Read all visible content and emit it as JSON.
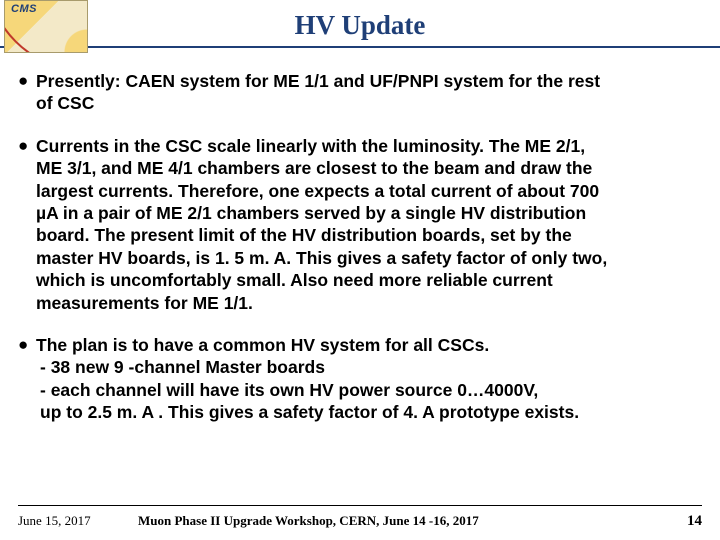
{
  "logo": {
    "label": "CMS"
  },
  "title": "HV Update",
  "colors": {
    "title_color": "#1f3f77",
    "header_line": "#1f3f77",
    "text_color": "#000000",
    "background": "#ffffff"
  },
  "typography": {
    "title_font": "Times New Roman",
    "title_size_pt": 20,
    "body_font": "Arial",
    "body_size_pt": 13,
    "body_weight": "bold"
  },
  "bullets": [
    {
      "lines": [
        "Presently: CAEN system for ME 1/1 and UF/PNPI system for the rest",
        "of CSC"
      ]
    },
    {
      "lines": [
        "Currents in the CSC scale linearly with the luminosity. The ME 2/1,",
        "ME 3/1, and ME 4/1 chambers are closest to the beam and draw the",
        "largest currents. Therefore, one expects a total current of about 700",
        "µA in a pair of ME 2/1 chambers served by a single HV distribution",
        "board. The present  limit of the HV distribution boards, set by the",
        "master HV boards, is 1. 5 m. A. This gives a safety factor of only two,",
        "which is uncomfortably small. Also need more reliable current",
        "measurements for ME 1/1."
      ]
    },
    {
      "lines": [
        "The plan is to have a common HV system for all CSCs.",
        "- 38 new 9 -channel Master boards",
        "- each channel will have its own HV power source 0…4000V,",
        "  up to 2.5 m. A . This gives a safety factor of 4. A prototype exists."
      ]
    }
  ],
  "footer": {
    "date": "June 15, 2017",
    "venue": "Muon Phase II Upgrade Workshop, CERN, June 14 -16, 2017",
    "page": "14"
  }
}
